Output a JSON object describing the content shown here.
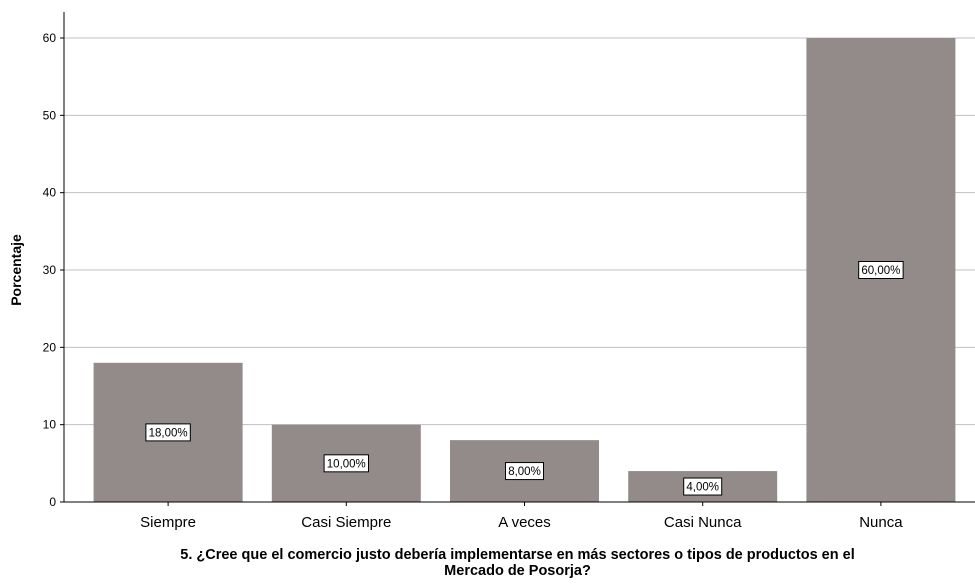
{
  "chart_data": {
    "type": "bar",
    "categories": [
      "Siempre",
      "Casi Siempre",
      "A veces",
      "Casi Nunca",
      "Nunca"
    ],
    "values": [
      18,
      10,
      8,
      4,
      60
    ],
    "data_labels": [
      "18,00%",
      "10,00%",
      "8,00%",
      "4,00%",
      "60,00%"
    ],
    "yticks": [
      "0",
      "10",
      "20",
      "30",
      "40",
      "50",
      "60"
    ],
    "ylim": [
      0,
      60
    ],
    "ylabel": "Porcentaje",
    "xlabel_line1": "5.  ¿Cree que el comercio justo debería implementarse en más sectores o tipos de productos en el",
    "xlabel_line2": "Mercado de Posorja?",
    "grid": true,
    "colors": {
      "bar": "#938b89",
      "gridline": "#c0c0c0",
      "axis": "#000000"
    }
  }
}
